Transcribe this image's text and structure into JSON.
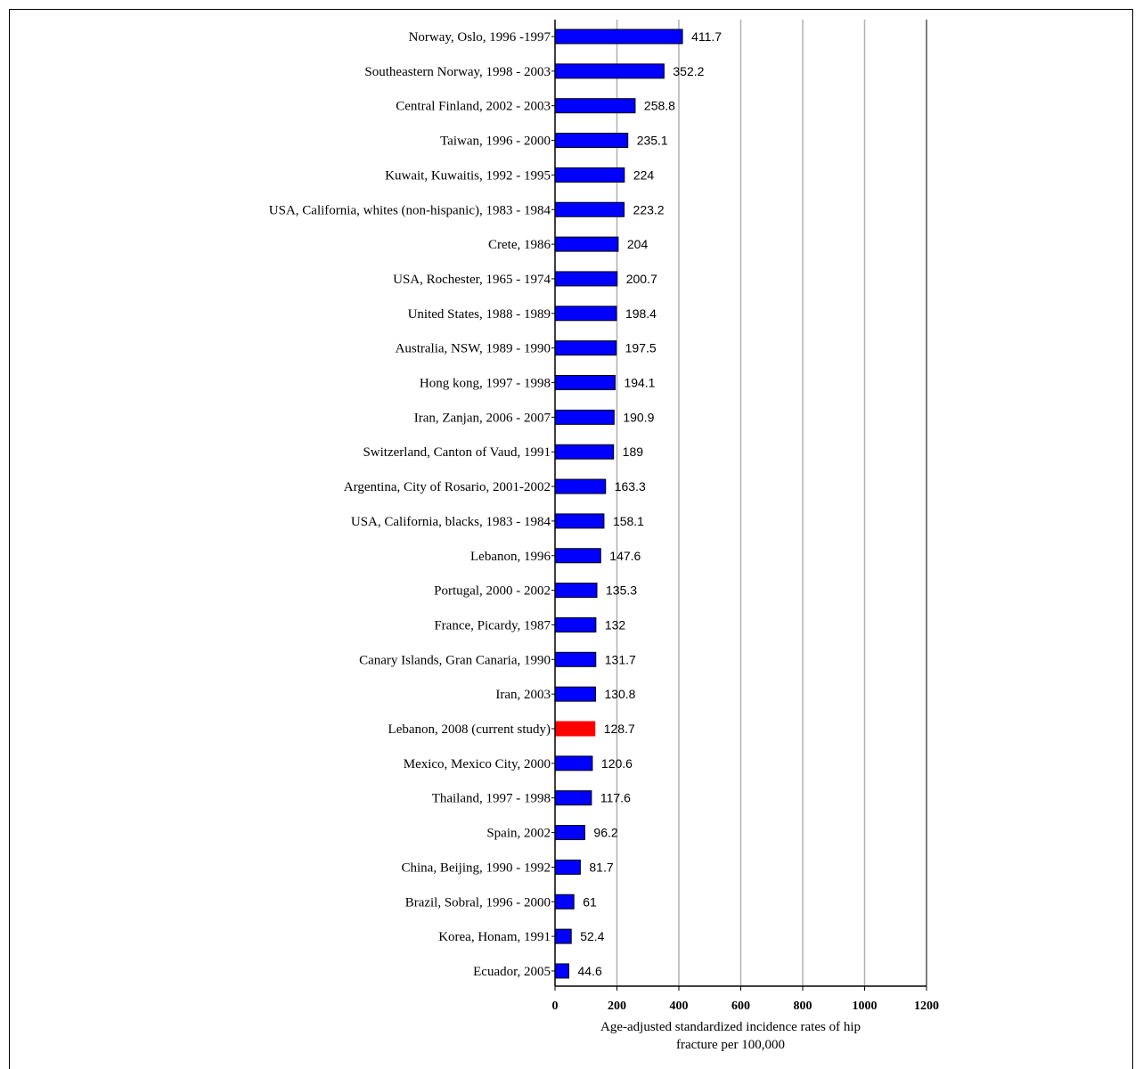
{
  "chart_data": {
    "type": "bar",
    "orientation": "horizontal",
    "xlabel_line1": "Age-adjusted standardized incidence rates of hip",
    "xlabel_line2": "fracture per 100,000",
    "xlim": [
      0,
      1200
    ],
    "xticks": [
      0,
      200,
      400,
      600,
      800,
      1000,
      1200
    ],
    "grid": "vertical",
    "colors": {
      "default": "#0000ff",
      "highlight": "#ff0000",
      "grid": "#b0b0b0"
    },
    "categories": [
      "Norway, Oslo, 1996 -1997",
      "Southeastern Norway, 1998 - 2003",
      "Central Finland, 2002 - 2003",
      "Taiwan, 1996 - 2000",
      "Kuwait, Kuwaitis, 1992 - 1995",
      "USA, California, whites (non-hispanic), 1983 - 1984",
      "Crete, 1986",
      "USA, Rochester, 1965 - 1974",
      "United States, 1988 - 1989",
      "Australia, NSW, 1989 - 1990",
      "Hong kong, 1997 - 1998",
      "Iran, Zanjan, 2006 - 2007",
      "Switzerland, Canton of Vaud, 1991",
      "Argentina, City of Rosario, 2001-2002",
      "USA, California, blacks, 1983 - 1984",
      "Lebanon, 1996",
      "Portugal, 2000 - 2002",
      "France, Picardy, 1987",
      "Canary Islands, Gran Canaria, 1990",
      "Iran, 2003",
      "Lebanon, 2008 (current study)",
      "Mexico, Mexico City, 2000",
      "Thailand, 1997 - 1998",
      "Spain, 2002",
      "China, Beijing, 1990 - 1992",
      "Brazil, Sobral, 1996 - 2000",
      "Korea, Honam, 1991",
      "Ecuador, 2005"
    ],
    "values": [
      411.7,
      352.2,
      258.8,
      235.1,
      224,
      223.2,
      204,
      200.7,
      198.4,
      197.5,
      194.1,
      190.9,
      189,
      163.3,
      158.1,
      147.6,
      135.3,
      132,
      131.7,
      130.8,
      128.7,
      120.6,
      117.6,
      96.2,
      81.7,
      61,
      52.4,
      44.6
    ],
    "value_labels": [
      "411.7",
      "352.2",
      "258.8",
      "235.1",
      "224",
      "223.2",
      "204",
      "200.7",
      "198.4",
      "197.5",
      "194.1",
      "190.9",
      "189",
      "163.3",
      "158.1",
      "147.6",
      "135.3",
      "132",
      "131.7",
      "130.8",
      "128.7",
      "120.6",
      "117.6",
      "96.2",
      "81.7",
      "61",
      "52.4",
      "44.6"
    ],
    "highlight_index": 20
  }
}
